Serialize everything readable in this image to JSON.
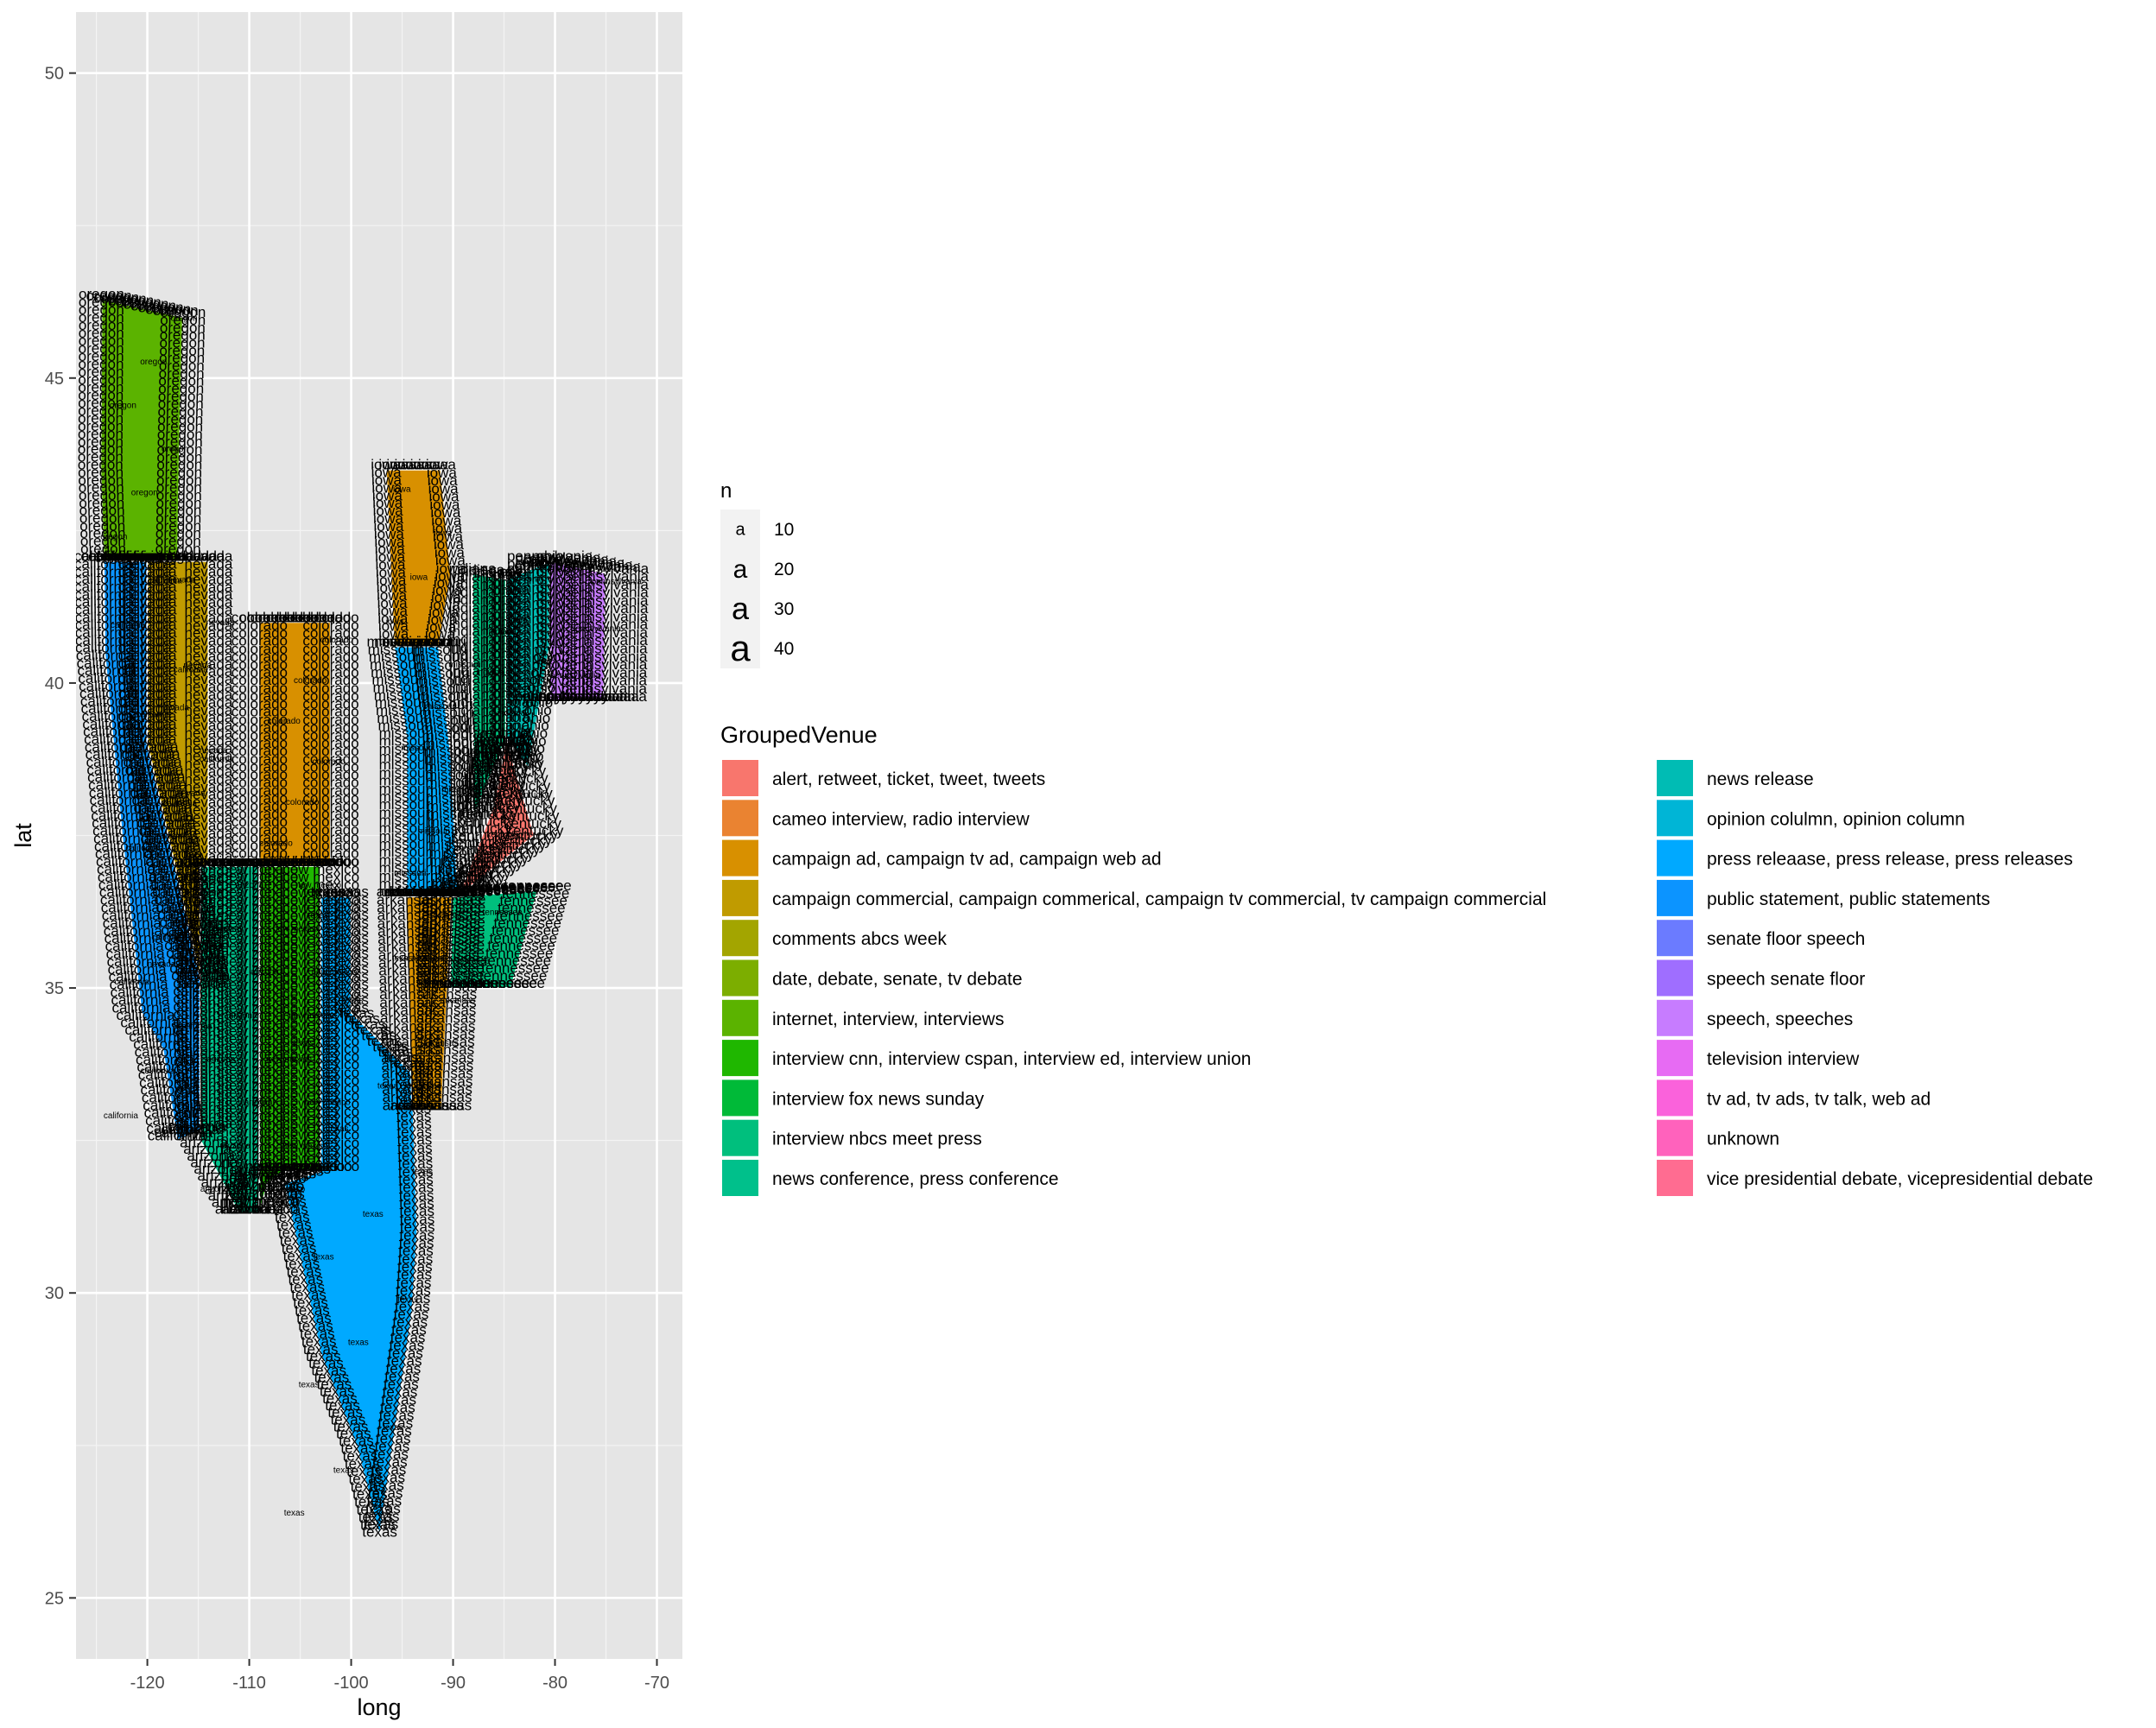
{
  "chart_data": {
    "type": "map",
    "xlabel": "long",
    "ylabel": "lat",
    "xlim": [
      -127,
      -67.5
    ],
    "ylim": [
      24,
      51
    ],
    "x_ticks": [
      -120,
      -110,
      -100,
      -90,
      -80,
      -70
    ],
    "y_ticks": [
      25,
      30,
      35,
      40,
      45,
      50
    ],
    "x_tick_labels": [
      "-120",
      "-110",
      "-100",
      "-90",
      "-80",
      "-70"
    ],
    "y_tick_labels": [
      "25",
      "30",
      "35",
      "40",
      "45",
      "50"
    ],
    "grid": true,
    "panel_background": "#e5e5e5",
    "label_color": "#000000",
    "size_legend": {
      "title": "n",
      "glyph": "a",
      "values": [
        10,
        20,
        30,
        40
      ],
      "labels": [
        "10",
        "20",
        "30",
        "40"
      ]
    },
    "fill_legend": {
      "title": "GroupedVenue",
      "placement": "right",
      "items": [
        {
          "label": "alert, retweet, ticket, tweet, tweets",
          "color": "#F8766D"
        },
        {
          "label": "cameo interview, radio interview",
          "color": "#EA8331"
        },
        {
          "label": "campaign ad, campaign tv ad, campaign web ad",
          "color": "#D89000"
        },
        {
          "label": "campaign commercial, campaign commerical, campaign tv commercial, tv campaign commercial",
          "color": "#C09B00"
        },
        {
          "label": "comments abcs week",
          "color": "#A3A500"
        },
        {
          "label": "date, debate, senate, tv debate",
          "color": "#7CAE00"
        },
        {
          "label": "internet, interview, interviews",
          "color": "#5BB300"
        },
        {
          "label": "interview cnn, interview cspan, interview ed, interview union",
          "color": "#1FB700"
        },
        {
          "label": "interview fox news sunday",
          "color": "#00BA38"
        },
        {
          "label": "interview nbcs meet press",
          "color": "#00BF7D"
        },
        {
          "label": "news conference, press conference",
          "color": "#00C08B"
        },
        {
          "label": "news release",
          "color": "#00BCB4"
        },
        {
          "label": "opinion colulmn, opinion column",
          "color": "#00B5D6"
        },
        {
          "label": "press releaase, press release, press releases",
          "color": "#00A9FF"
        },
        {
          "label": "public statement, public statements",
          "color": "#0C94FF"
        },
        {
          "label": "senate floor speech",
          "color": "#6B7BFF"
        },
        {
          "label": "speech senate floor",
          "color": "#9F6EFF"
        },
        {
          "label": "speech, speeches",
          "color": "#C77CFF"
        },
        {
          "label": "television interview",
          "color": "#E76BF3"
        },
        {
          "label": "tv ad, tv ads, tv talk, web ad",
          "color": "#FA62DB"
        },
        {
          "label": "unknown",
          "color": "#FF62BC"
        },
        {
          "label": "vice presidential debate, vicepresidential debate",
          "color": "#FF6C91"
        }
      ]
    },
    "state_regions": [
      {
        "state": "oregon",
        "color": "#5BB300",
        "outline": [
          [
            -124.5,
            46.3
          ],
          [
            -116.5,
            46.0
          ],
          [
            -116.8,
            44.0
          ],
          [
            -117.0,
            42.0
          ],
          [
            -124.3,
            42.0
          ],
          [
            -124.6,
            43.5
          ]
        ]
      },
      {
        "state": "california",
        "color": "#0C94FF",
        "outline": [
          [
            -124.3,
            42.0
          ],
          [
            -120.0,
            42.0
          ],
          [
            -120.0,
            39.0
          ],
          [
            -114.6,
            35.0
          ],
          [
            -114.5,
            32.7
          ],
          [
            -117.1,
            32.5
          ],
          [
            -118.5,
            34.0
          ],
          [
            -120.6,
            34.6
          ],
          [
            -122.5,
            37.5
          ],
          [
            -124.2,
            40.5
          ]
        ]
      },
      {
        "state": "nevada",
        "color": "#C09B00",
        "outline": [
          [
            -120.0,
            42.0
          ],
          [
            -114.0,
            42.0
          ],
          [
            -114.0,
            36.2
          ],
          [
            -114.6,
            35.0
          ],
          [
            -120.0,
            39.0
          ]
        ]
      },
      {
        "state": "colorado",
        "color": "#D89000",
        "outline": [
          [
            -109.0,
            41.0
          ],
          [
            -102.0,
            41.0
          ],
          [
            -102.0,
            37.0
          ],
          [
            -109.0,
            37.0
          ]
        ]
      },
      {
        "state": "arizona",
        "color": "#00C08B",
        "outline": [
          [
            -114.8,
            37.0
          ],
          [
            -109.0,
            37.0
          ],
          [
            -109.0,
            31.3
          ],
          [
            -111.0,
            31.3
          ],
          [
            -114.8,
            32.5
          ]
        ]
      },
      {
        "state": "new mexico",
        "color": "#1FB700",
        "outline": [
          [
            -109.0,
            37.0
          ],
          [
            -103.0,
            37.0
          ],
          [
            -103.0,
            32.0
          ],
          [
            -106.6,
            32.0
          ],
          [
            -108.2,
            31.8
          ],
          [
            -109.0,
            31.3
          ]
        ]
      },
      {
        "state": "texas",
        "color": "#00A9FF",
        "outline": [
          [
            -103.0,
            36.5
          ],
          [
            -100.0,
            36.5
          ],
          [
            -100.0,
            34.6
          ],
          [
            -94.0,
            33.6
          ],
          [
            -93.5,
            31.0
          ],
          [
            -94.0,
            29.7
          ],
          [
            -97.2,
            26.0
          ],
          [
            -99.5,
            27.5
          ],
          [
            -103.0,
            29.0
          ],
          [
            -106.6,
            31.8
          ],
          [
            -103.0,
            32.0
          ]
        ]
      },
      {
        "state": "missouri",
        "color": "#00A9FF",
        "outline": [
          [
            -95.8,
            40.6
          ],
          [
            -91.4,
            40.6
          ],
          [
            -90.2,
            38.8
          ],
          [
            -89.5,
            36.5
          ],
          [
            -94.6,
            36.5
          ],
          [
            -94.6,
            39.1
          ]
        ]
      },
      {
        "state": "arkansas",
        "color": "#D89000",
        "outline": [
          [
            -94.6,
            36.5
          ],
          [
            -90.1,
            36.5
          ],
          [
            -91.1,
            33.0
          ],
          [
            -94.0,
            33.0
          ]
        ]
      },
      {
        "state": "iowa",
        "color": "#D89000",
        "outline": [
          [
            -96.6,
            43.5
          ],
          [
            -91.2,
            43.5
          ],
          [
            -90.2,
            41.8
          ],
          [
            -91.4,
            40.6
          ],
          [
            -95.8,
            40.6
          ]
        ]
      },
      {
        "state": "tennessee",
        "color": "#00BF7D",
        "outline": [
          [
            -90.1,
            36.5
          ],
          [
            -81.7,
            36.6
          ],
          [
            -84.3,
            35.0
          ],
          [
            -90.3,
            35.0
          ]
        ]
      },
      {
        "state": "ohio",
        "color": "#00BCB4",
        "outline": [
          [
            -84.8,
            41.7
          ],
          [
            -80.5,
            42.0
          ],
          [
            -80.5,
            40.6
          ],
          [
            -82.6,
            38.6
          ],
          [
            -84.8,
            39.1
          ]
        ]
      },
      {
        "state": "indiana",
        "color": "#00BF7D",
        "outline": [
          [
            -88.1,
            41.8
          ],
          [
            -84.8,
            41.7
          ],
          [
            -84.8,
            39.1
          ],
          [
            -88.0,
            37.8
          ]
        ]
      },
      {
        "state": "kentucky",
        "color": "#F8766D",
        "outline": [
          [
            -89.5,
            36.5
          ],
          [
            -82.0,
            37.5
          ],
          [
            -84.8,
            39.1
          ],
          [
            -86.0,
            38.0
          ]
        ]
      },
      {
        "state": "pennsylvania",
        "color": "#C77CFF",
        "outline": [
          [
            -80.5,
            42.0
          ],
          [
            -75.0,
            41.8
          ],
          [
            -75.2,
            39.7
          ],
          [
            -80.5,
            39.7
          ]
        ]
      }
    ]
  }
}
